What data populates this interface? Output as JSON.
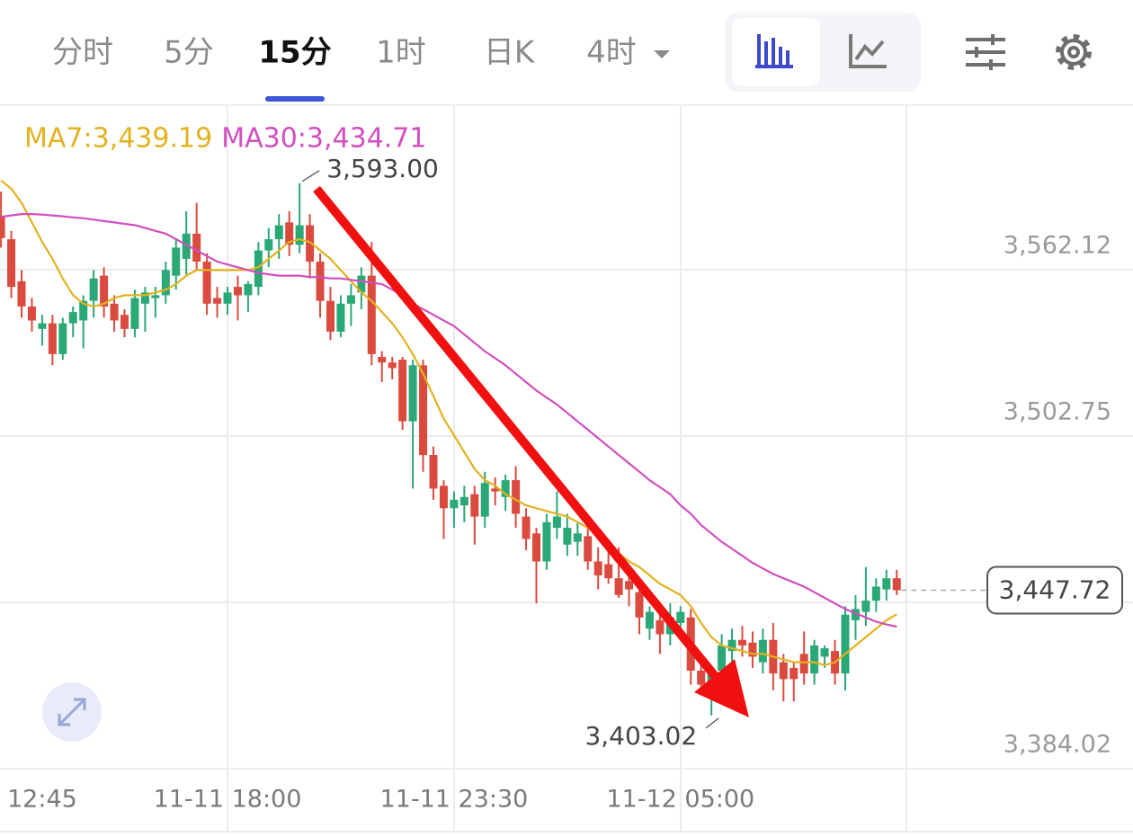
{
  "tabs": [
    "分时",
    "5分",
    "15分",
    "1时",
    "日K",
    "4时"
  ],
  "selected_tab": 2,
  "chart_data": {
    "type": "candlestick",
    "categories": [
      null,
      "12:45",
      null,
      null,
      null,
      null,
      null,
      null,
      null,
      null,
      null,
      null,
      null,
      null,
      null,
      null,
      null,
      null,
      null,
      null,
      null,
      null,
      "11-11 18:00",
      null,
      null,
      null,
      null,
      null,
      null,
      null,
      null,
      null,
      null,
      null,
      null,
      null,
      null,
      null,
      null,
      null,
      null,
      null,
      null,
      null,
      "11-11 23:30",
      null,
      null,
      null,
      null,
      null,
      null,
      null,
      null,
      null,
      null,
      null,
      null,
      null,
      null,
      null,
      null,
      null,
      null,
      null,
      null,
      null,
      "11-12 05:00",
      null,
      null,
      null,
      null,
      null,
      null,
      null,
      null,
      null,
      null,
      null,
      null,
      null,
      null,
      null,
      null,
      null,
      null,
      null,
      null,
      null
    ],
    "ohlc": [
      [
        3581.4,
        3590,
        3570,
        3573.4
      ],
      [
        3573,
        3576,
        3552,
        3556
      ],
      [
        3558,
        3562,
        3545,
        3549
      ],
      [
        3549,
        3552,
        3540,
        3544
      ],
      [
        3541,
        3546,
        3535,
        3543
      ],
      [
        3543,
        3546,
        3528,
        3532
      ],
      [
        3532,
        3545,
        3530,
        3543
      ],
      [
        3543,
        3549,
        3538,
        3547
      ],
      [
        3544,
        3553,
        3534,
        3551
      ],
      [
        3551,
        3562,
        3545,
        3559
      ],
      [
        3560,
        3563,
        3545,
        3549
      ],
      [
        3550,
        3553,
        3540,
        3544
      ],
      [
        3546,
        3548,
        3538,
        3541
      ],
      [
        3541,
        3555,
        3538,
        3552
      ],
      [
        3550,
        3556,
        3540,
        3554
      ],
      [
        3552,
        3556,
        3545,
        3553
      ],
      [
        3553,
        3565,
        3550,
        3562
      ],
      [
        3560,
        3573,
        3555,
        3570
      ],
      [
        3566,
        3583,
        3560,
        3575
      ],
      [
        3575,
        3586,
        3562,
        3565
      ],
      [
        3565,
        3568,
        3546,
        3550
      ],
      [
        3552,
        3556,
        3545,
        3550
      ],
      [
        3550,
        3556,
        3546,
        3554
      ],
      [
        3556,
        3560,
        3544,
        3553
      ],
      [
        3553,
        3558,
        3547,
        3557
      ],
      [
        3556,
        3572,
        3553,
        3569
      ],
      [
        3569,
        3577,
        3563,
        3573
      ],
      [
        3573,
        3582,
        3566,
        3578
      ],
      [
        3579,
        3583,
        3567,
        3571
      ],
      [
        3571,
        3593.0,
        3568,
        3578
      ],
      [
        3578,
        3582,
        3559,
        3565
      ],
      [
        3565,
        3568,
        3545,
        3551
      ],
      [
        3551,
        3556,
        3537,
        3540
      ],
      [
        3540,
        3553,
        3538,
        3550
      ],
      [
        3550,
        3557,
        3542,
        3553
      ],
      [
        3554,
        3563,
        3548,
        3560
      ],
      [
        3560,
        3572,
        3528,
        3532
      ],
      [
        3531,
        3533,
        3522,
        3529
      ],
      [
        3529,
        3531,
        3523,
        3527
      ],
      [
        3530,
        3531,
        3505,
        3508
      ],
      [
        3508,
        3530,
        3484,
        3528
      ],
      [
        3528,
        3530,
        3490,
        3496
      ],
      [
        3496,
        3499,
        3480,
        3484
      ],
      [
        3485,
        3487,
        3466,
        3477
      ],
      [
        3477,
        3483,
        3470,
        3480
      ],
      [
        3478,
        3485,
        3472,
        3481
      ],
      [
        3482,
        3485,
        3464,
        3474
      ],
      [
        3474,
        3490,
        3470,
        3486
      ],
      [
        3484,
        3488,
        3478,
        3483
      ],
      [
        3481,
        3489,
        3476,
        3487
      ],
      [
        3487,
        3492,
        3470,
        3475
      ],
      [
        3474,
        3477,
        3462,
        3466
      ],
      [
        3468,
        3470,
        3443,
        3458
      ],
      [
        3458,
        3475,
        3455,
        3472
      ],
      [
        3470,
        3483,
        3466,
        3474
      ],
      [
        3464,
        3475,
        3460,
        3470
      ],
      [
        3465,
        3472,
        3460,
        3468
      ],
      [
        3467,
        3471,
        3455,
        3458
      ],
      [
        3458,
        3463,
        3448,
        3453
      ],
      [
        3457,
        3465,
        3450,
        3452
      ],
      [
        3452,
        3463,
        3445,
        3446
      ],
      [
        3451,
        3455,
        3442,
        3448
      ],
      [
        3447,
        3452,
        3432,
        3438
      ],
      [
        3434,
        3442,
        3430,
        3440
      ],
      [
        3437,
        3441,
        3425,
        3432
      ],
      [
        3432,
        3443,
        3428,
        3438
      ],
      [
        3436,
        3442,
        3430,
        3440
      ],
      [
        3438,
        3441,
        3414,
        3419
      ],
      [
        3419,
        3424,
        3411,
        3414
      ],
      [
        3414,
        3418,
        3403.02,
        3419
      ],
      [
        3419,
        3432,
        3415,
        3428
      ],
      [
        3426,
        3434,
        3421,
        3430
      ],
      [
        3430,
        3435,
        3424,
        3428
      ],
      [
        3429,
        3433,
        3420,
        3424
      ],
      [
        3422,
        3434,
        3418,
        3430
      ],
      [
        3430,
        3436,
        3412,
        3418
      ],
      [
        3422,
        3425,
        3408,
        3416
      ],
      [
        3420,
        3422,
        3408,
        3416
      ],
      [
        3425,
        3433,
        3414,
        3418
      ],
      [
        3418,
        3430,
        3414,
        3428
      ],
      [
        3424,
        3428,
        3420,
        3427
      ],
      [
        3426,
        3430,
        3414,
        3418
      ],
      [
        3418,
        3442,
        3412,
        3439
      ],
      [
        3437,
        3446,
        3430,
        3441
      ],
      [
        3440,
        3456,
        3435,
        3444
      ],
      [
        3444,
        3452,
        3440,
        3449
      ],
      [
        3448,
        3455,
        3444,
        3452
      ],
      [
        3452,
        3455,
        3446,
        3447.72
      ]
    ],
    "up_color": "#2aa876",
    "down_color": "#db4a3f",
    "series": [
      {
        "name": "MA7:3,439.19",
        "color": "#e3b21f",
        "values": [
          3594,
          3591,
          3586,
          3579,
          3572,
          3566,
          3559,
          3553,
          3550,
          3549,
          3550,
          3552,
          3553,
          3553,
          3553,
          3554,
          3555,
          3557,
          3560,
          3562,
          3562,
          3562,
          3562,
          3562,
          3562,
          3563,
          3566,
          3569,
          3572,
          3573,
          3572,
          3569,
          3566,
          3562,
          3558,
          3554,
          3551,
          3547,
          3543,
          3538,
          3532,
          3525,
          3517,
          3509,
          3503,
          3497,
          3491,
          3487,
          3485,
          3482,
          3480,
          3478,
          3477,
          3476,
          3475,
          3474,
          3472,
          3470,
          3467,
          3464,
          3461,
          3458,
          3456,
          3453,
          3450,
          3448,
          3446,
          3442,
          3436,
          3431,
          3428,
          3427,
          3426,
          3425,
          3425,
          3424,
          3423,
          3422,
          3422,
          3422,
          3421,
          3422,
          3425,
          3428,
          3431,
          3434,
          3437,
          3439.19
        ]
      },
      {
        "name": "MA30:3,434.71",
        "color": "#d24fbf",
        "values": [
          3581,
          3581.5,
          3582,
          3582,
          3581.8,
          3581.5,
          3581.2,
          3580.8,
          3580.5,
          3580,
          3579.5,
          3579,
          3578.5,
          3578,
          3577,
          3576,
          3575,
          3573,
          3571,
          3569,
          3567,
          3565,
          3564,
          3563,
          3562,
          3561,
          3560.5,
          3560,
          3560,
          3560,
          3559.5,
          3559.5,
          3559,
          3559,
          3558.5,
          3558,
          3557.5,
          3557,
          3555,
          3553,
          3550,
          3548,
          3546,
          3544,
          3542,
          3539,
          3536,
          3533,
          3530.5,
          3528,
          3525,
          3522,
          3519,
          3516.5,
          3514,
          3511,
          3508,
          3505,
          3502,
          3499,
          3496,
          3493,
          3490,
          3487,
          3484.5,
          3482,
          3478,
          3475,
          3471,
          3468,
          3465,
          3462.5,
          3460,
          3457.5,
          3455.5,
          3453.5,
          3452,
          3450.5,
          3449,
          3447,
          3445,
          3443,
          3441,
          3439.5,
          3438,
          3436.5,
          3435.5,
          3434.71
        ]
      }
    ],
    "ylim": [
      3384.02,
      3620.85
    ],
    "yticks": [
      {
        "value": 3562.12,
        "label": "3,562.12"
      },
      {
        "value": 3502.75,
        "label": "3,502.75"
      },
      {
        "value": 3443.38,
        "label": ""
      },
      {
        "value": 3384.02,
        "label": "3,384.02"
      }
    ],
    "grid": true,
    "high_label": "3,593.00",
    "low_label": "3,403.02",
    "last_label": "3,447.72"
  }
}
